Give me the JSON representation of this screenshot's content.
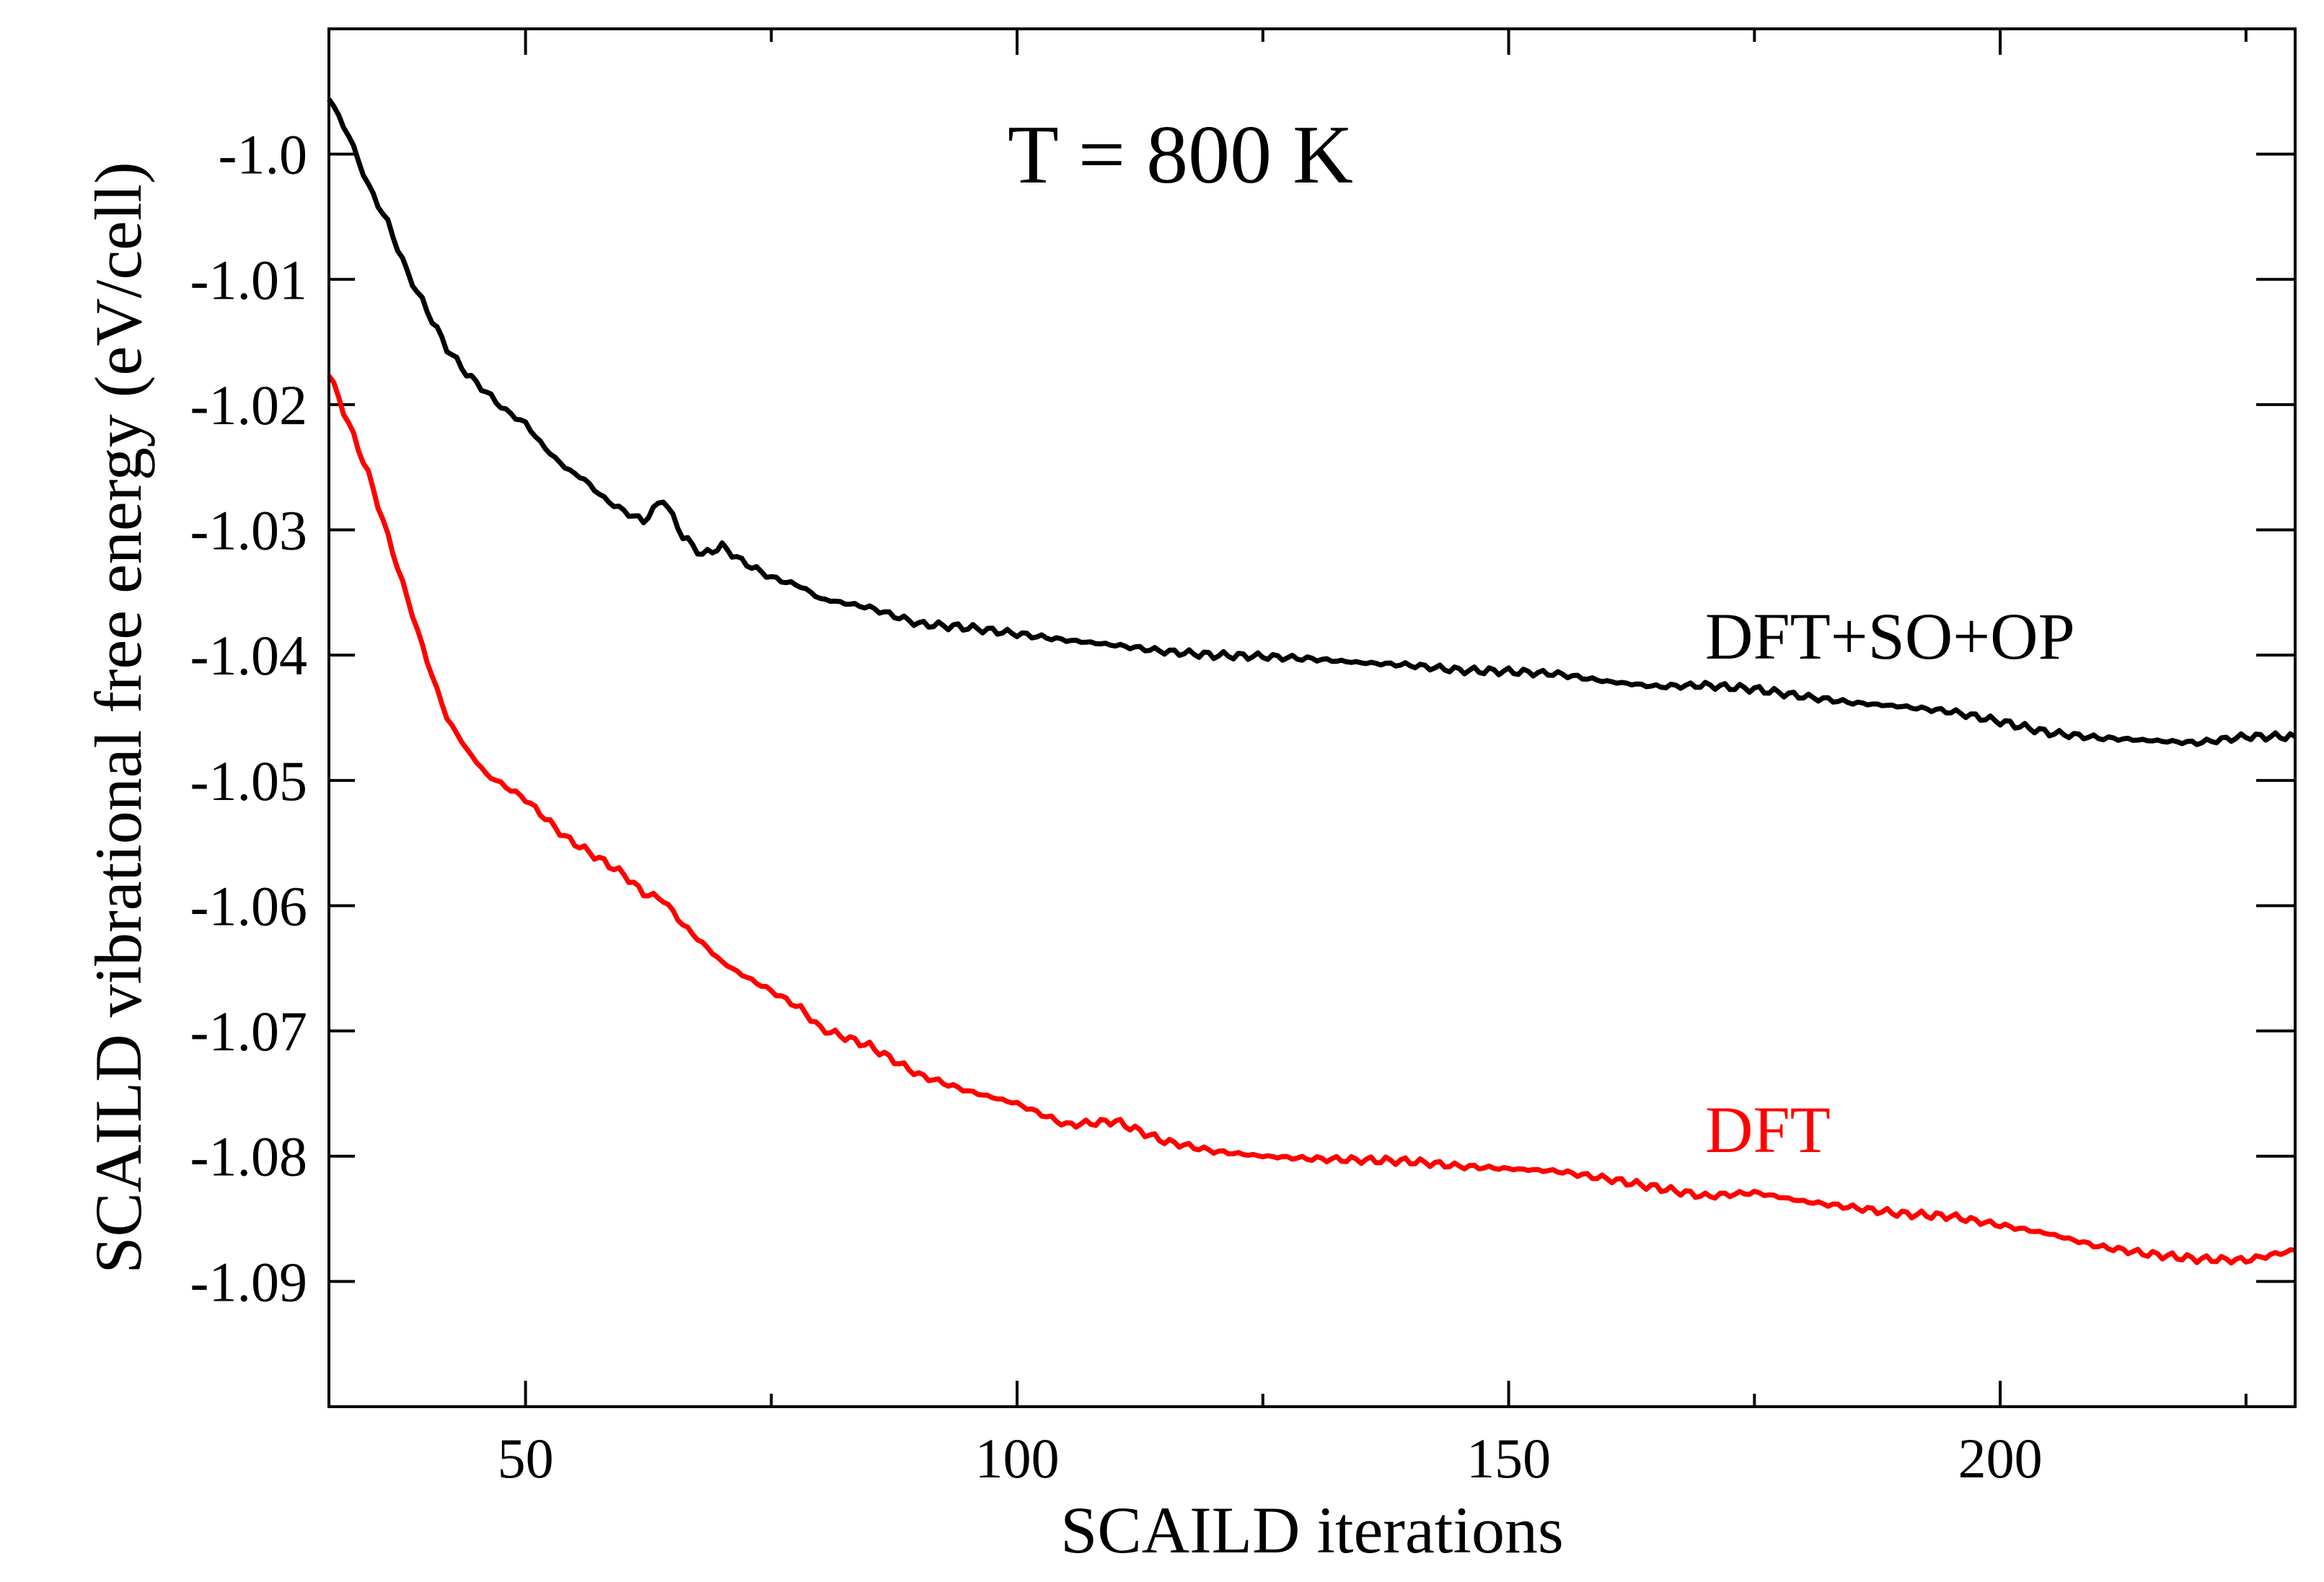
{
  "chart_data": {
    "type": "line",
    "title": "",
    "xlabel": "SCAILD iterations",
    "ylabel": "SCAILD vibrational free energy (eV/cell)",
    "xlim": [
      30,
      230
    ],
    "ylim": [
      -1.1,
      -0.99
    ],
    "x_ticks": [
      {
        "value": 50,
        "label": "50"
      },
      {
        "value": 100,
        "label": "100"
      },
      {
        "value": 150,
        "label": "150"
      },
      {
        "value": 200,
        "label": "200"
      }
    ],
    "y_ticks": [
      {
        "value": -1.0,
        "label": "-1.0"
      },
      {
        "value": -1.01,
        "label": "-1.01"
      },
      {
        "value": -1.02,
        "label": "-1.02"
      },
      {
        "value": -1.03,
        "label": "-1.03"
      },
      {
        "value": -1.04,
        "label": "-1.04"
      },
      {
        "value": -1.05,
        "label": "-1.05"
      },
      {
        "value": -1.06,
        "label": "-1.06"
      },
      {
        "value": -1.07,
        "label": "-1.07"
      },
      {
        "value": -1.08,
        "label": "-1.08"
      },
      {
        "value": -1.09,
        "label": "-1.09"
      }
    ],
    "annotations": [
      {
        "text": "T = 800 K",
        "x": 100,
        "y": -1.0,
        "color": "#000000"
      },
      {
        "text": "DFT+SO+OP",
        "x": 170,
        "y": -1.039,
        "color": "#000000"
      },
      {
        "text": "DFT",
        "x": 170,
        "y": -1.078,
        "color": "#ff0000"
      }
    ],
    "series": [
      {
        "name": "DFT+SO+OP",
        "color": "#000000",
        "x": [
          30,
          32,
          34,
          36,
          38,
          40,
          42,
          44,
          46,
          48,
          50,
          52,
          54,
          56,
          58,
          60,
          62,
          64,
          66,
          68,
          70,
          72,
          75,
          78,
          80,
          85,
          90,
          95,
          100,
          105,
          110,
          115,
          120,
          125,
          130,
          135,
          140,
          145,
          150,
          155,
          160,
          165,
          170,
          175,
          180,
          185,
          190,
          195,
          200,
          205,
          210,
          215,
          220,
          225,
          230
        ],
        "y": [
          -0.9955,
          -0.9985,
          -1.0025,
          -1.0055,
          -1.0095,
          -1.0125,
          -1.0155,
          -1.0175,
          -1.019,
          -1.0205,
          -1.0215,
          -1.0235,
          -1.025,
          -1.026,
          -1.0275,
          -1.0285,
          -1.0293,
          -1.0275,
          -1.0305,
          -1.032,
          -1.0313,
          -1.0325,
          -1.0338,
          -1.0345,
          -1.0355,
          -1.0362,
          -1.0375,
          -1.0378,
          -1.0383,
          -1.0388,
          -1.0392,
          -1.0397,
          -1.04,
          -1.0401,
          -1.0403,
          -1.0406,
          -1.0408,
          -1.0412,
          -1.0413,
          -1.0415,
          -1.0421,
          -1.0425,
          -1.0424,
          -1.0427,
          -1.0433,
          -1.0438,
          -1.0441,
          -1.0445,
          -1.0453,
          -1.0462,
          -1.0466,
          -1.0468,
          -1.047,
          -1.0465,
          -1.0465
        ]
      },
      {
        "name": "DFT",
        "color": "#ff0000",
        "x": [
          30,
          32,
          34,
          36,
          38,
          40,
          42,
          44,
          46,
          48,
          50,
          52,
          54,
          56,
          58,
          60,
          62,
          64,
          66,
          68,
          70,
          72,
          75,
          78,
          80,
          85,
          90,
          95,
          100,
          105,
          110,
          115,
          120,
          125,
          130,
          135,
          140,
          145,
          150,
          155,
          160,
          165,
          170,
          175,
          180,
          185,
          190,
          195,
          200,
          205,
          210,
          215,
          220,
          225,
          230
        ],
        "y": [
          -1.0175,
          -1.0215,
          -1.0255,
          -1.0305,
          -1.0355,
          -1.0405,
          -1.045,
          -1.0475,
          -1.0495,
          -1.0505,
          -1.0515,
          -1.053,
          -1.0545,
          -1.0555,
          -1.0565,
          -1.0575,
          -1.059,
          -1.0595,
          -1.0615,
          -1.063,
          -1.0645,
          -1.0655,
          -1.0668,
          -1.0682,
          -1.0698,
          -1.0712,
          -1.0735,
          -1.0748,
          -1.0758,
          -1.0775,
          -1.0772,
          -1.0788,
          -1.0796,
          -1.08,
          -1.0802,
          -1.0803,
          -1.0804,
          -1.0808,
          -1.081,
          -1.0812,
          -1.0818,
          -1.0825,
          -1.0832,
          -1.0829,
          -1.0836,
          -1.0841,
          -1.0846,
          -1.0848,
          -1.0855,
          -1.0862,
          -1.0872,
          -1.0878,
          -1.0882,
          -1.0883,
          -1.0875
        ]
      }
    ]
  }
}
